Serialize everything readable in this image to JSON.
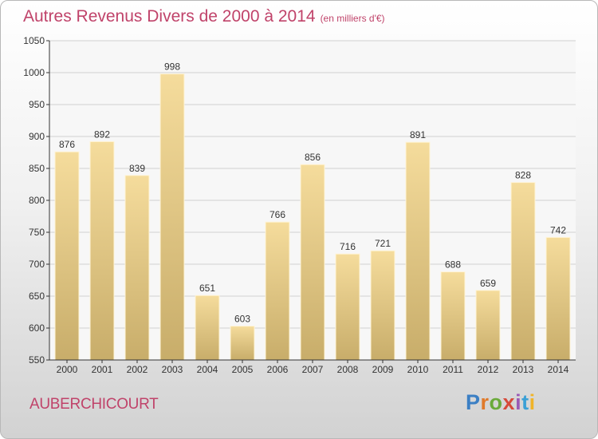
{
  "title": "Autres Revenus Divers de 2000 à 2014",
  "unit_note": "(en milliers d'€)",
  "town": "AUBERCHICOURT",
  "logo": {
    "text": "Proxiti",
    "letter_colors": [
      "#3b7fc4",
      "#e07a2b",
      "#6aaa3a",
      "#d64a3a",
      "#9b59b6",
      "#3aa0d6",
      "#f0b429"
    ]
  },
  "colors": {
    "title": "#c0436a",
    "bar_top": "#f5dc9c",
    "bar_bottom": "#c8ad6a",
    "grid": "#d0d0d0",
    "axis": "#333333"
  },
  "chart_data": {
    "type": "bar",
    "title": "Autres Revenus Divers de 2000 à 2014",
    "subtitle": "(en milliers d'€)",
    "xlabel": "",
    "ylabel": "",
    "categories": [
      "2000",
      "2001",
      "2002",
      "2003",
      "2004",
      "2005",
      "2006",
      "2007",
      "2008",
      "2009",
      "2010",
      "2011",
      "2012",
      "2013",
      "2014"
    ],
    "values": [
      876,
      892,
      839,
      998,
      651,
      603,
      766,
      856,
      716,
      721,
      891,
      688,
      659,
      828,
      742
    ],
    "ylim": [
      550,
      1050
    ],
    "yticks": [
      550,
      600,
      650,
      700,
      750,
      800,
      850,
      900,
      950,
      1000,
      1050
    ],
    "grid": true,
    "legend": "none"
  }
}
